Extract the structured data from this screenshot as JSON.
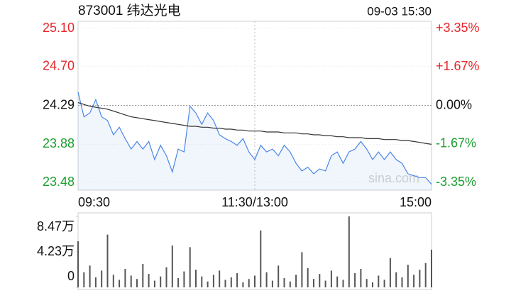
{
  "chart_data": [
    {
      "type": "line",
      "title": "873001 纬达光电",
      "subtitle": "09-03 15:30",
      "watermark": "sina.com",
      "x": [
        0,
        4,
        8,
        12,
        16,
        20,
        24,
        28,
        32,
        36,
        40,
        44,
        48,
        52,
        56,
        60,
        64,
        68,
        72,
        76,
        80,
        84,
        88,
        92,
        96,
        100,
        104,
        108,
        112,
        116,
        120,
        124,
        128,
        132,
        136,
        140,
        144,
        148,
        152,
        156,
        160,
        164,
        168,
        172,
        176,
        180,
        184,
        188,
        192,
        196,
        200,
        204,
        208,
        212,
        216,
        220,
        224,
        228,
        232,
        236,
        240
      ],
      "xlim": [
        0,
        240
      ],
      "xticks": [
        {
          "value": 0,
          "label": "09:30"
        },
        {
          "value": 120,
          "label": "11:30/13:00"
        },
        {
          "value": 240,
          "label": "15:00"
        }
      ],
      "ylim": [
        23.48,
        25.1
      ],
      "yticks": [
        {
          "value": 25.1,
          "label": "25.10"
        },
        {
          "value": 24.7,
          "label": "24.70"
        },
        24.29,
        23.88,
        23.48
      ],
      "y2lim": [
        -3.35,
        3.35
      ],
      "y2ticks": [
        {
          "value": 3.35,
          "label": "+3.35%"
        },
        {
          "value": 1.67,
          "label": "+1.67%"
        },
        {
          "value": 0,
          "label": "0.00%"
        },
        {
          "value": -1.67,
          "label": "-1.67%"
        },
        {
          "value": -3.35,
          "label": "-3.35%"
        }
      ],
      "up_color": "#e8262b",
      "down_color": "#1a9e2e",
      "grid": true,
      "series": [
        {
          "color": "#4a86e8",
          "area": true,
          "values": [
            24.43,
            24.17,
            24.21,
            24.35,
            24.17,
            24.13,
            23.98,
            24.06,
            23.94,
            23.83,
            23.91,
            23.83,
            23.91,
            23.72,
            23.87,
            23.76,
            23.59,
            23.83,
            23.8,
            24.28,
            24.21,
            24.09,
            24.21,
            24.13,
            23.98,
            23.94,
            23.91,
            23.87,
            23.94,
            23.8,
            23.72,
            23.87,
            23.8,
            23.83,
            23.76,
            23.87,
            23.8,
            23.68,
            23.6,
            23.64,
            23.57,
            23.62,
            23.6,
            23.76,
            23.8,
            23.68,
            23.8,
            23.83,
            23.91,
            23.83,
            23.72,
            23.8,
            23.72,
            23.8,
            23.72,
            23.68,
            23.57,
            23.55,
            23.53,
            23.53,
            23.46
          ]
        },
        {
          "color": "#333333",
          "area": false,
          "values": [
            24.32,
            24.3,
            24.28,
            24.27,
            24.26,
            24.25,
            24.23,
            24.21,
            24.19,
            24.17,
            24.16,
            24.15,
            24.14,
            24.13,
            24.12,
            24.11,
            24.1,
            24.09,
            24.08,
            24.07,
            24.07,
            24.06,
            24.06,
            24.05,
            24.05,
            24.04,
            24.04,
            24.03,
            24.03,
            24.02,
            24.02,
            24.02,
            24.01,
            24.01,
            24.01,
            24.0,
            24.0,
            24.0,
            23.99,
            23.99,
            23.98,
            23.98,
            23.97,
            23.97,
            23.96,
            23.96,
            23.95,
            23.95,
            23.95,
            23.94,
            23.94,
            23.94,
            23.93,
            23.93,
            23.93,
            23.92,
            23.92,
            23.91,
            23.9,
            23.89,
            23.88
          ]
        }
      ]
    },
    {
      "type": "bar",
      "color": "#555555",
      "x": [
        0,
        4,
        8,
        12,
        16,
        20,
        24,
        28,
        32,
        36,
        40,
        44,
        48,
        52,
        56,
        60,
        64,
        68,
        72,
        76,
        80,
        84,
        88,
        92,
        96,
        100,
        104,
        108,
        112,
        116,
        120,
        124,
        128,
        132,
        136,
        140,
        144,
        148,
        152,
        156,
        160,
        164,
        168,
        172,
        176,
        180,
        184,
        188,
        192,
        196,
        200,
        204,
        208,
        212,
        216,
        220,
        224,
        228,
        232,
        236,
        240
      ],
      "xlim": [
        0,
        240
      ],
      "ylim": [
        0,
        8.47
      ],
      "yticks": [
        {
          "value": 8.47,
          "label": "8.47万"
        },
        {
          "value": 4.23,
          "label": "4.23万"
        },
        0
      ],
      "values": [
        5.5,
        1.8,
        2.6,
        1.2,
        2.0,
        6.3,
        1.5,
        0.9,
        2.2,
        1.4,
        1.0,
        2.8,
        1.6,
        0.8,
        1.3,
        2.4,
        5.0,
        1.1,
        1.9,
        4.8,
        2.1,
        1.3,
        0.7,
        1.5,
        2.0,
        0.9,
        1.2,
        1.7,
        0.6,
        1.0,
        1.4,
        6.8,
        1.8,
        0.8,
        2.6,
        1.1,
        0.7,
        1.5,
        4.2,
        2.3,
        1.0,
        1.6,
        0.8,
        2.0,
        1.3,
        0.9,
        8.47,
        1.7,
        2.2,
        1.0,
        0.6,
        1.4,
        0.9,
        3.5,
        1.8,
        1.2,
        2.7,
        1.5,
        2.1,
        2.9,
        4.5
      ]
    }
  ]
}
